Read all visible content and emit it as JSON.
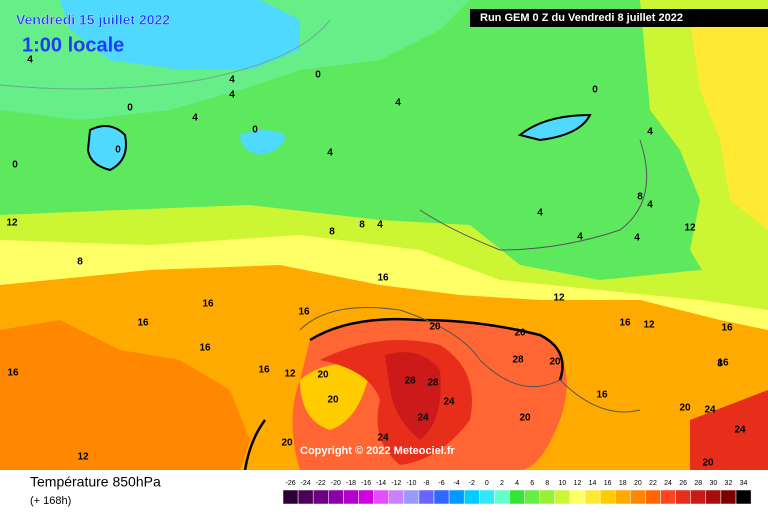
{
  "header": {
    "date": "Vendredi 15 juillet 2022",
    "time": "1:00 locale",
    "run": "Run GEM 0 Z du Vendredi 8 juillet 2022"
  },
  "map": {
    "copyright": "Copyright © 2022 Meteociel.fr",
    "contour_labels": [
      4,
      0,
      0,
      4,
      4,
      4,
      0,
      0,
      4,
      4,
      0,
      0,
      4,
      4,
      8,
      8,
      8,
      4,
      4,
      4,
      4,
      12,
      8,
      16,
      16,
      16,
      16,
      16,
      16,
      16,
      12,
      20,
      20,
      20,
      20,
      28,
      28,
      24,
      24,
      24,
      28,
      20,
      20,
      16,
      12,
      16,
      12,
      16,
      16,
      20,
      24,
      20,
      24,
      12,
      12,
      8,
      20
    ]
  },
  "legend": {
    "title": "Température 850hPa",
    "subtitle": "(+ 168h)",
    "scale": {
      "values": [
        -26,
        -24,
        -22,
        -20,
        -18,
        -16,
        -14,
        -12,
        -10,
        -8,
        -6,
        -4,
        -2,
        0,
        2,
        4,
        6,
        8,
        10,
        12,
        14,
        16,
        18,
        20,
        22,
        24,
        26,
        28,
        30,
        32,
        34
      ],
      "colors": [
        "#2b0033",
        "#4d0059",
        "#6b0080",
        "#8c00a8",
        "#b300cc",
        "#d100e0",
        "#e64dff",
        "#cc80ff",
        "#9999ff",
        "#6666ff",
        "#3366ff",
        "#0099ff",
        "#00ccff",
        "#33e6ff",
        "#66ffcc",
        "#33e633",
        "#66ee44",
        "#99f033",
        "#ccf533",
        "#ffff66",
        "#ffea33",
        "#ffcc00",
        "#ffaa00",
        "#ff8800",
        "#ff6600",
        "#ff4422",
        "#e62e1a",
        "#cc1a1a",
        "#a30f0f",
        "#7a0000",
        "#000000"
      ]
    }
  }
}
